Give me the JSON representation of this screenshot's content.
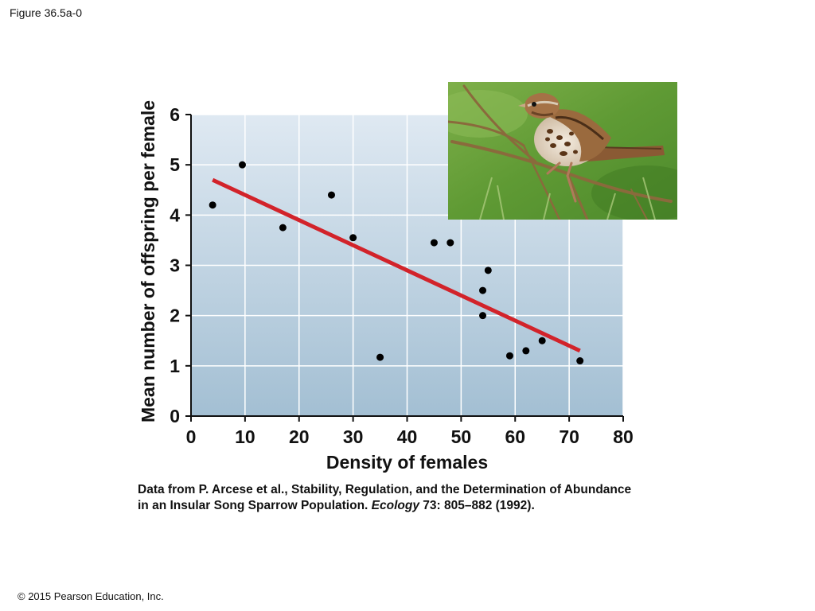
{
  "figure_label": "Figure 36.5a-0",
  "copyright": "© 2015 Pearson Education, Inc.",
  "source": {
    "line1": "Data from P. Arcese et al., Stability, Regulation, and the Determination of Abundance",
    "line2_pre": "in an Insular Song Sparrow Population. ",
    "line2_journal": "Ecology",
    "line2_post": " 73: 805–882 (1992)."
  },
  "photo": {
    "subject": "song-sparrow"
  },
  "colors": {
    "plot_top": "#dfe9f2",
    "plot_bottom": "#a3bfd3",
    "grid": "#ffffff",
    "trend_line": "#d2232a",
    "points": "#000000"
  },
  "chart_data": {
    "type": "scatter",
    "title": "",
    "xlabel": "Density of females",
    "ylabel": "Mean number of offspring per female",
    "xlim": [
      0,
      80
    ],
    "ylim": [
      0,
      6
    ],
    "xticks": [
      "0",
      "10",
      "20",
      "30",
      "40",
      "50",
      "60",
      "70",
      "80"
    ],
    "yticks": [
      "0",
      "1",
      "2",
      "3",
      "4",
      "5",
      "6"
    ],
    "grid": true,
    "points": [
      {
        "x": 4,
        "y": 4.2
      },
      {
        "x": 9.5,
        "y": 5.0
      },
      {
        "x": 17,
        "y": 3.75
      },
      {
        "x": 26,
        "y": 4.4
      },
      {
        "x": 30,
        "y": 3.55
      },
      {
        "x": 35,
        "y": 1.17
      },
      {
        "x": 45,
        "y": 3.45
      },
      {
        "x": 48,
        "y": 3.45
      },
      {
        "x": 54,
        "y": 2.5
      },
      {
        "x": 54,
        "y": 2.0
      },
      {
        "x": 55,
        "y": 2.9
      },
      {
        "x": 59,
        "y": 1.2
      },
      {
        "x": 62,
        "y": 1.3
      },
      {
        "x": 65,
        "y": 1.5
      },
      {
        "x": 72,
        "y": 1.1
      }
    ],
    "trend_line": {
      "x": [
        4,
        72
      ],
      "y": [
        4.7,
        1.3
      ]
    }
  }
}
